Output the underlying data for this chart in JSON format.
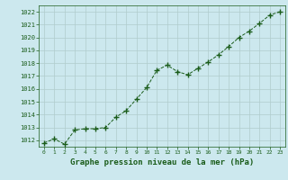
{
  "x": [
    0,
    1,
    2,
    3,
    4,
    5,
    6,
    7,
    8,
    9,
    10,
    11,
    12,
    13,
    14,
    15,
    16,
    17,
    18,
    19,
    20,
    21,
    22,
    23
  ],
  "y": [
    1011.8,
    1012.1,
    1011.7,
    1012.8,
    1012.9,
    1012.9,
    1013.0,
    1013.8,
    1014.3,
    1015.2,
    1016.1,
    1017.45,
    1017.85,
    1017.35,
    1017.1,
    1017.6,
    1018.1,
    1018.65,
    1019.3,
    1020.0,
    1020.5,
    1021.1,
    1021.75,
    1022.0
  ],
  "ylim": [
    1011.5,
    1022.5
  ],
  "xlim": [
    -0.5,
    23.5
  ],
  "yticks": [
    1012,
    1013,
    1014,
    1015,
    1016,
    1017,
    1018,
    1019,
    1020,
    1021,
    1022
  ],
  "xticks": [
    0,
    1,
    2,
    3,
    4,
    5,
    6,
    7,
    8,
    9,
    10,
    11,
    12,
    13,
    14,
    15,
    16,
    17,
    18,
    19,
    20,
    21,
    22,
    23
  ],
  "line_color": "#1a5c1a",
  "marker_color": "#1a5c1a",
  "bg_color": "#cce8ee",
  "grid_color": "#b0cccc",
  "xlabel": "Graphe pression niveau de la mer (hPa)",
  "xlabel_color": "#1a5c1a",
  "tick_color": "#1a5c1a",
  "spine_color": "#1a5c1a"
}
